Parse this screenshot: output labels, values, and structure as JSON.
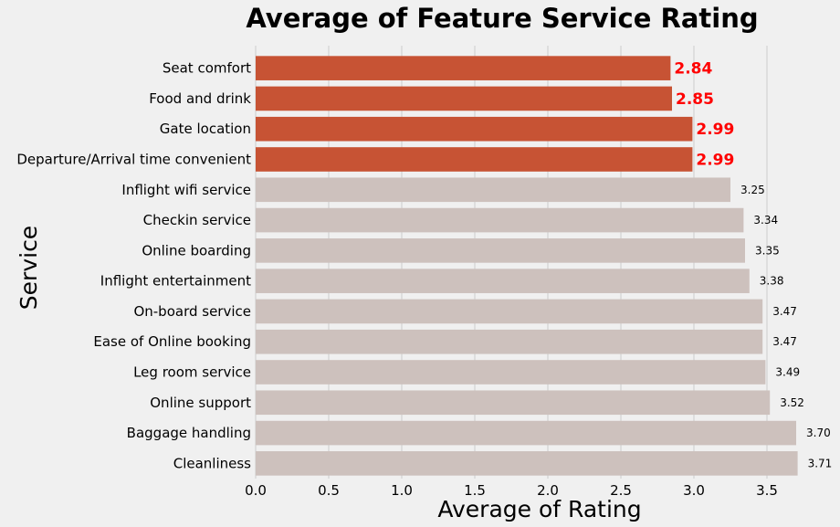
{
  "chart_data": {
    "type": "bar",
    "orientation": "horizontal",
    "title": "Average of Feature Service Rating",
    "xlabel": "Average of Rating",
    "ylabel": "Service",
    "xlim": [
      0,
      3.75
    ],
    "xticks": [
      0.0,
      0.5,
      1.0,
      1.5,
      2.0,
      2.5,
      3.0,
      3.5
    ],
    "xtick_labels": [
      "0.0",
      "0.5",
      "1.0",
      "1.5",
      "2.0",
      "2.5",
      "3.0",
      "3.5"
    ],
    "grid": "vertical",
    "categories": [
      "Seat comfort",
      "Food and drink",
      "Gate location",
      "Departure/Arrival time convenient",
      "Inflight wifi service",
      "Checkin service",
      "Online boarding",
      "Inflight entertainment",
      "On-board service",
      "Ease of Online booking",
      "Leg room service",
      "Online support",
      "Baggage handling",
      "Cleanliness"
    ],
    "values": [
      2.84,
      2.85,
      2.99,
      2.99,
      3.25,
      3.34,
      3.35,
      3.38,
      3.47,
      3.47,
      3.49,
      3.52,
      3.7,
      3.71
    ],
    "value_labels": [
      "2.84",
      "2.85",
      "2.99",
      "2.99",
      "3.25",
      "3.34",
      "3.35",
      "3.38",
      "3.47",
      "3.47",
      "3.49",
      "3.52",
      "3.70",
      "3.71"
    ],
    "highlighted_count": 4,
    "colors": {
      "highlight": "#c75334",
      "normal": "#cdc1bd",
      "highlight_label": "#ff0000",
      "grid": "#cccccc",
      "background": "#f0f0f0"
    }
  }
}
